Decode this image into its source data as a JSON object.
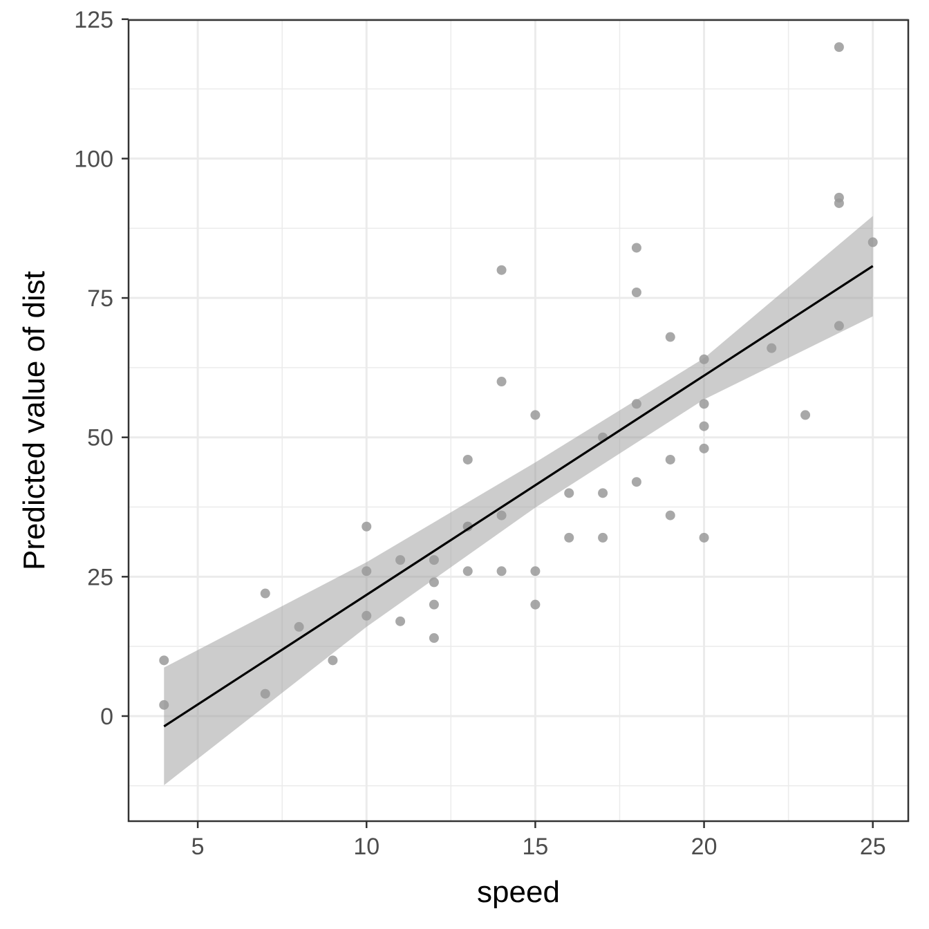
{
  "chart_data": {
    "type": "scatter",
    "title": "",
    "xlabel": "speed",
    "ylabel": "Predicted value of dist",
    "xlim": [
      2.95,
      26.05
    ],
    "ylim": [
      -18.85,
      124.85
    ],
    "x_ticks": [
      5,
      10,
      15,
      20,
      25
    ],
    "x_tick_labels": [
      "5",
      "10",
      "15",
      "20",
      "25"
    ],
    "x_minor_ticks": [
      7.5,
      12.5,
      17.5,
      22.5
    ],
    "y_ticks": [
      0,
      25,
      50,
      75,
      100,
      125
    ],
    "y_tick_labels": [
      "0",
      "25",
      "50",
      "75",
      "100",
      "125"
    ],
    "y_minor_ticks": [
      -12.5,
      12.5,
      37.5,
      62.5,
      87.5,
      112.5
    ],
    "grid": true,
    "points": {
      "x": [
        4,
        4,
        7,
        7,
        8,
        9,
        10,
        10,
        10,
        11,
        11,
        12,
        12,
        12,
        12,
        13,
        13,
        13,
        13,
        14,
        14,
        14,
        14,
        15,
        15,
        15,
        16,
        16,
        17,
        17,
        17,
        18,
        18,
        18,
        18,
        19,
        19,
        19,
        20,
        20,
        20,
        20,
        20,
        22,
        23,
        24,
        24,
        24,
        24,
        25
      ],
      "y": [
        2,
        10,
        4,
        22,
        16,
        10,
        18,
        26,
        34,
        17,
        28,
        14,
        20,
        24,
        28,
        26,
        34,
        34,
        46,
        26,
        36,
        60,
        80,
        20,
        26,
        54,
        32,
        40,
        32,
        40,
        50,
        42,
        56,
        76,
        84,
        36,
        46,
        68,
        32,
        48,
        52,
        56,
        64,
        66,
        54,
        70,
        92,
        93,
        120,
        85
      ]
    },
    "fit_line": {
      "x": [
        4,
        25
      ],
      "y": [
        -1.85,
        80.73
      ]
    },
    "confidence_band": {
      "x": [
        4,
        10,
        15,
        20,
        25
      ],
      "upper": [
        8.7,
        27.6,
        45.5,
        64.2,
        89.7
      ],
      "lower": [
        -12.4,
        16.0,
        37.4,
        56.8,
        71.7
      ]
    },
    "colors": {
      "points": "#999999",
      "line": "#000000",
      "band": "#999999",
      "grid": "#ebebeb",
      "panel_border": "#333333",
      "tick_text": "#4d4d4d",
      "title_text": "#000000"
    }
  }
}
